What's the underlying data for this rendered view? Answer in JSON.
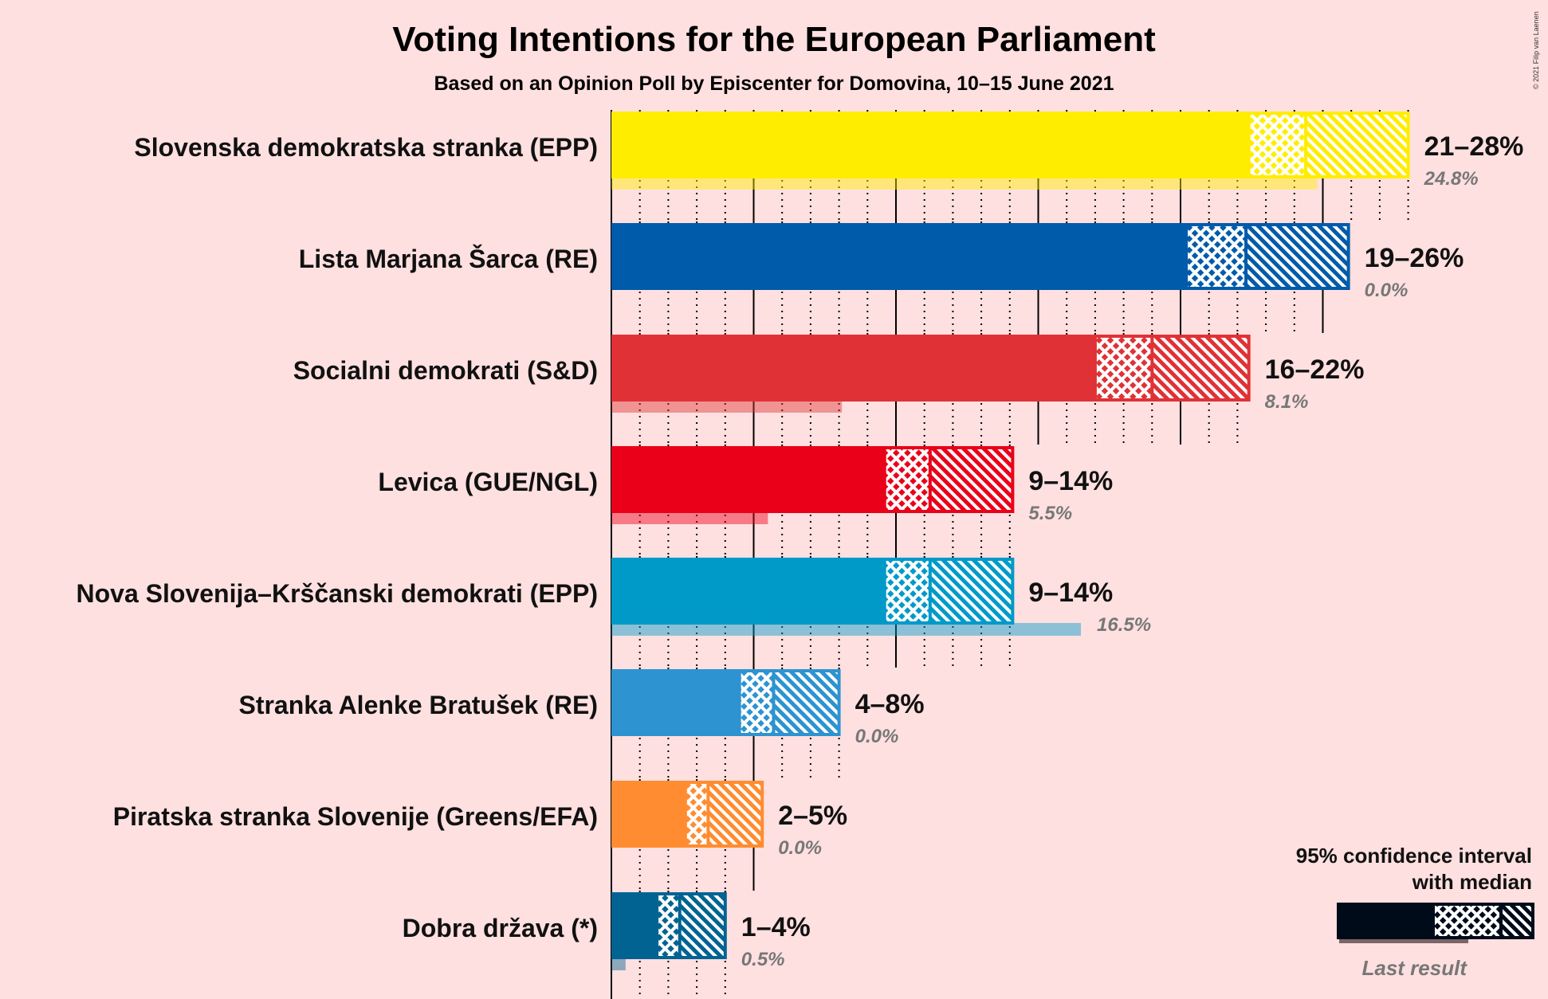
{
  "chart_data": {
    "type": "bar",
    "title": "Voting Intentions for the European Parliament",
    "subtitle": "Based on an Opinion Poll by Episcenter for Domovina, 10–15 June 2021",
    "copyright": "© 2021 Filip van Laenen",
    "xlim": [
      0,
      28
    ],
    "parties": [
      {
        "name": "Slovenska demokratska stranka (EPP)",
        "color": "#FFED00",
        "low95": 21.1,
        "low80": 22.4,
        "median": 24.4,
        "high80": 25.8,
        "high95": 28.0,
        "range_label": "21–28%",
        "last": 24.8,
        "last_label": "24.8%"
      },
      {
        "name": "Lista Marjana Šarca (RE)",
        "color": "#005BAA",
        "low95": 19.1,
        "low80": 20.2,
        "median": 22.3,
        "high80": 23.8,
        "high95": 25.9,
        "range_label": "19–26%",
        "last": 0.0,
        "last_label": "0.0%"
      },
      {
        "name": "Socialni demokrati (S&D)",
        "color": "#E03236",
        "low95": 15.9,
        "low80": 17.0,
        "median": 19.0,
        "high80": 20.5,
        "high95": 22.4,
        "range_label": "16–22%",
        "last": 8.1,
        "last_label": "8.1%"
      },
      {
        "name": "Levica (GUE/NGL)",
        "color": "#EA0019",
        "low95": 8.8,
        "low80": 9.6,
        "median": 11.2,
        "high80": 12.5,
        "high95": 14.1,
        "range_label": "9–14%",
        "last": 5.5,
        "last_label": "5.5%"
      },
      {
        "name": "Nova Slovenija–Krščanski demokrati (EPP)",
        "color": "#009AC9",
        "low95": 8.8,
        "low80": 9.6,
        "median": 11.2,
        "high80": 12.5,
        "high95": 14.1,
        "range_label": "9–14%",
        "last": 16.5,
        "last_label": "16.5%"
      },
      {
        "name": "Stranka Alenke Bratušek (RE)",
        "color": "#2D93D1",
        "low95": 4.1,
        "low80": 4.5,
        "median": 5.7,
        "high80": 6.7,
        "high95": 8.0,
        "range_label": "4–8%",
        "last": 0.0,
        "last_label": "0.0%"
      },
      {
        "name": "Piratska stranka Slovenije (Greens/EFA)",
        "color": "#FF8C30",
        "low95": 2.2,
        "low80": 2.6,
        "median": 3.4,
        "high80": 4.3,
        "high95": 5.3,
        "range_label": "2–5%",
        "last": 0.0,
        "last_label": "0.0%"
      },
      {
        "name": "Dobra država (*)",
        "color": "#006391",
        "low95": 1.4,
        "low80": 1.6,
        "median": 2.4,
        "high80": 3.1,
        "high95": 4.0,
        "range_label": "1–4%",
        "last": 0.5,
        "last_label": "0.5%"
      }
    ],
    "legend": {
      "line1": "95% confidence interval",
      "line2": "with median",
      "last": "Last result"
    }
  }
}
